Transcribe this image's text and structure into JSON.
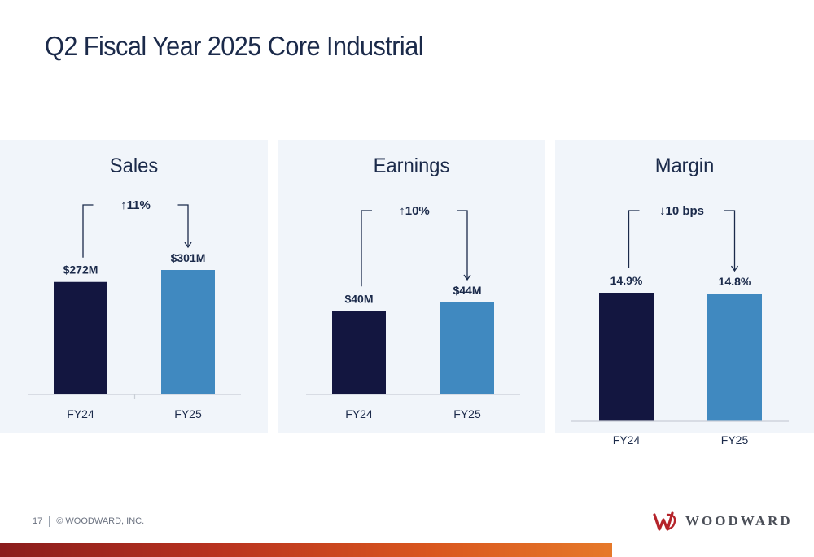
{
  "title": "Q2 Fiscal Year 2025 Core Industrial",
  "footer": {
    "page_number": "17",
    "copyright": "© WOODWARD, INC."
  },
  "logo": {
    "wordmark": "WOODWARD",
    "brand_color": "#b5232a"
  },
  "colors": {
    "fy24": "#131640",
    "fy25": "#4089c0",
    "panel": "#f1f5fa",
    "text": "#1b2a4a"
  },
  "chart_data": [
    {
      "type": "bar",
      "title": "Sales",
      "categories": [
        "FY24",
        "FY25"
      ],
      "values": [
        272,
        301
      ],
      "value_labels": [
        "$272M",
        "$301M"
      ],
      "unit": "$M",
      "annotation": {
        "direction": "up",
        "text": "11%"
      }
    },
    {
      "type": "bar",
      "title": "Earnings",
      "categories": [
        "FY24",
        "FY25"
      ],
      "values": [
        40,
        44
      ],
      "value_labels": [
        "$40M",
        "$44M"
      ],
      "unit": "$M",
      "annotation": {
        "direction": "up",
        "text": "10%"
      }
    },
    {
      "type": "bar",
      "title": "Margin",
      "categories": [
        "FY24",
        "FY25"
      ],
      "values": [
        14.9,
        14.8
      ],
      "value_labels": [
        "14.9%",
        "14.8%"
      ],
      "unit": "%",
      "annotation": {
        "direction": "down",
        "text": "10 bps"
      }
    }
  ]
}
